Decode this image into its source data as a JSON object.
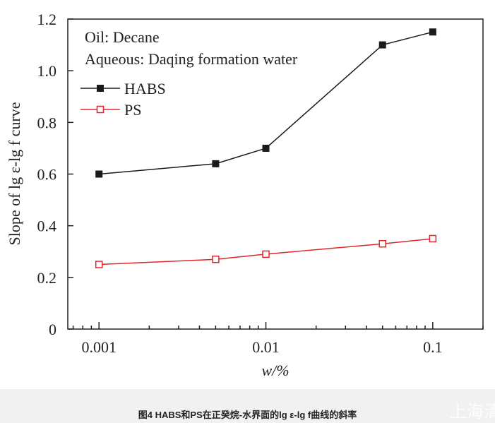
{
  "chart_data": {
    "type": "line",
    "xscale": "log",
    "xlim": [
      0.00065,
      0.2
    ],
    "ylim": [
      0,
      1.2
    ],
    "xlabel": "w/%",
    "ylabel": "Slope of lg ε-lg f curve",
    "x_ticks": [
      0.001,
      0.01,
      0.1
    ],
    "x_tick_labels": [
      "0.001",
      "0.01",
      "0.1"
    ],
    "y_ticks": [
      0,
      0.2,
      0.4,
      0.6,
      0.8,
      1.0,
      1.2
    ],
    "y_tick_labels": [
      "0",
      "0.2",
      "0.4",
      "0.6",
      "0.8",
      "1.0",
      "1.2"
    ],
    "annotations": [
      "Oil: Decane",
      "Aqueous: Daqing formation water"
    ],
    "legend_position": "top-left",
    "grid": false,
    "x": [
      0.001,
      0.005,
      0.01,
      0.05,
      0.1
    ],
    "series": [
      {
        "name": "HABS",
        "values": [
          0.6,
          0.64,
          0.7,
          1.1,
          1.15
        ],
        "color": "#1a1a1a",
        "marker": "filled-square"
      },
      {
        "name": "PS",
        "values": [
          0.25,
          0.27,
          0.29,
          0.33,
          0.35
        ],
        "color": "#e0262b",
        "marker": "open-square"
      }
    ]
  },
  "caption": "图4   HABS和PS在正癸烷-水界面的lg ε-lg f曲线的斜率",
  "watermark": "上海清"
}
